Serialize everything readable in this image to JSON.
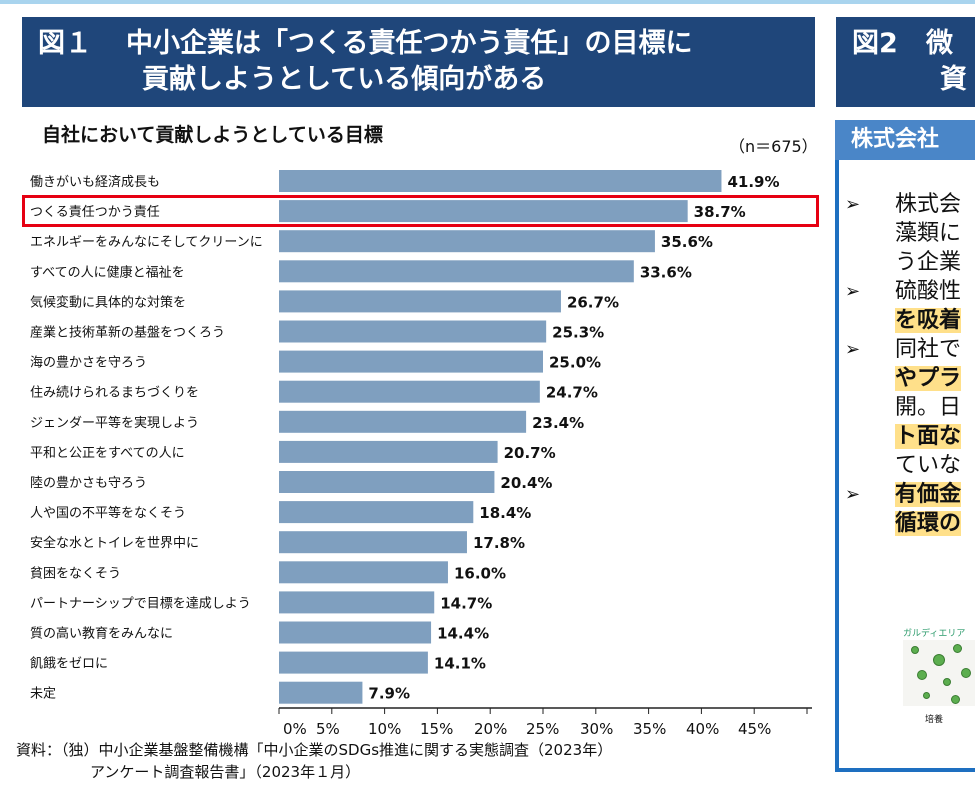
{
  "figure1": {
    "label": "図１",
    "title_line1": "中小企業は「つくる責任つかう責任」の目標に",
    "title_line2": "貢献しようとしている傾向がある",
    "subtitle": "自社において貢献しようとしている目標",
    "n_label": "（n＝675）",
    "source_line1": "資料：（独）中小企業基盤整備機構「中小企業のSDGs推進に関する実態調査（2023年）",
    "source_line2": "アンケート調査報告書」（2023年１月）",
    "highlight_color": "#e60012"
  },
  "figure2": {
    "label": "図2",
    "title_line1_fragment": "微",
    "title_line2_fragment": "資",
    "panel_header": "株式会社",
    "bullets": [
      {
        "lines": [
          {
            "text": "株式会",
            "hl": false
          },
          {
            "text": "藻類に",
            "hl": false
          },
          {
            "text": "う企業",
            "hl": false
          }
        ]
      },
      {
        "lines": [
          {
            "text": "硫酸性",
            "hl": false
          },
          {
            "text": "を吸着",
            "hl": true
          }
        ]
      },
      {
        "lines": [
          {
            "text": "同社で",
            "hl": false
          },
          {
            "text": "やプラ",
            "hl": true
          },
          {
            "text": "開。日",
            "hl": false
          },
          {
            "text": "ト面な",
            "hl": true
          },
          {
            "text": "ていな",
            "hl": false
          }
        ]
      },
      {
        "lines": [
          {
            "text": "有価金",
            "hl": true
          },
          {
            "text": "循環の",
            "hl": true
          }
        ]
      }
    ],
    "image_label": "ガルディエリア",
    "image_caption": "培養",
    "border_color": "#1e6fc0",
    "header_color": "#1f467a"
  },
  "chart_data": {
    "type": "bar",
    "orientation": "horizontal",
    "categories": [
      "働きがいも経済成長も",
      "つくる責任つかう責任",
      "エネルギーをみんなにそしてクリーンに",
      "すべての人に健康と福祉を",
      "気候変動に具体的な対策を",
      "産業と技術革新の基盤をつくろう",
      "海の豊かさを守ろう",
      "住み続けられるまちづくりを",
      "ジェンダー平等を実現しよう",
      "平和と公正をすべての人に",
      "陸の豊かさも守ろう",
      "人や国の不平等をなくそう",
      "安全な水とトイレを世界中に",
      "貧困をなくそう",
      "パートナーシップで目標を達成しよう",
      "質の高い教育をみんなに",
      "飢餓をゼロに",
      "未定"
    ],
    "values": [
      41.9,
      38.7,
      35.6,
      33.6,
      26.7,
      25.3,
      25.0,
      24.7,
      23.4,
      20.7,
      20.4,
      18.4,
      17.8,
      16.0,
      14.7,
      14.4,
      14.1,
      7.9
    ],
    "data_labels": [
      "41.9%",
      "38.7%",
      "35.6%",
      "33.6%",
      "26.7%",
      "25.3%",
      "25.0%",
      "24.7%",
      "23.4%",
      "20.7%",
      "20.4%",
      "18.4%",
      "17.8%",
      "16.0%",
      "14.7%",
      "14.4%",
      "14.1%",
      "7.9%"
    ],
    "xlim": [
      0,
      50
    ],
    "x_ticks": [
      "0%",
      "5%",
      "10%",
      "15%",
      "20%",
      "25%",
      "30%",
      "35%",
      "40%",
      "45%"
    ],
    "highlighted_category": "つくる責任つかう責任",
    "bar_color": "#7f9fbf",
    "grid": false
  }
}
